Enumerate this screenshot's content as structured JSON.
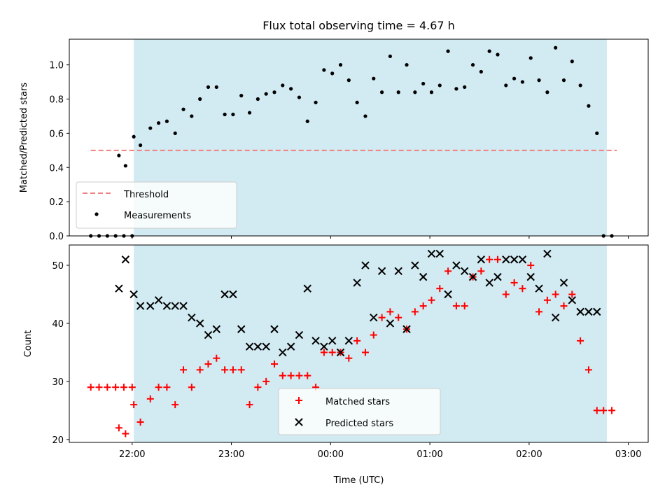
{
  "chart_data": [
    {
      "type": "scatter",
      "title": "Flux total observing time = 4.67 h",
      "ylabel": "Matched/Predicted stars",
      "xlim": [
        "21:22",
        "03:12"
      ],
      "ylim": [
        0,
        1.15
      ],
      "yticks": [
        "0.0",
        "0.2",
        "0.4",
        "0.6",
        "0.8",
        "1.0"
      ],
      "xticks": [
        "22:00",
        "23:00",
        "00:00",
        "01:00",
        "02:00",
        "03:00"
      ],
      "shaded_span": [
        "22:01",
        "02:47"
      ],
      "shade_color": "#add8e6",
      "threshold": {
        "name": "Threshold",
        "value": 0.5,
        "x_start": "21:35",
        "x_end": "02:53",
        "color": "#f08080"
      },
      "measurements": {
        "name": "Measurements",
        "color": "#000000",
        "points": [
          [
            "21:35",
            0.0
          ],
          [
            "21:40",
            0.0
          ],
          [
            "21:45",
            0.0
          ],
          [
            "21:50",
            0.0
          ],
          [
            "21:55",
            0.0
          ],
          [
            "22:00",
            0.0
          ],
          [
            "21:52",
            0.47
          ],
          [
            "21:56",
            0.41
          ],
          [
            "22:01",
            0.58
          ],
          [
            "22:05",
            0.53
          ],
          [
            "22:11",
            0.63
          ],
          [
            "22:16",
            0.66
          ],
          [
            "22:21",
            0.67
          ],
          [
            "22:26",
            0.6
          ],
          [
            "22:31",
            0.74
          ],
          [
            "22:36",
            0.7
          ],
          [
            "22:41",
            0.8
          ],
          [
            "22:46",
            0.87
          ],
          [
            "22:51",
            0.87
          ],
          [
            "22:56",
            0.71
          ],
          [
            "23:01",
            0.71
          ],
          [
            "23:06",
            0.82
          ],
          [
            "23:11",
            0.72
          ],
          [
            "23:16",
            0.8
          ],
          [
            "23:21",
            0.83
          ],
          [
            "23:26",
            0.84
          ],
          [
            "23:31",
            0.88
          ],
          [
            "23:36",
            0.86
          ],
          [
            "23:41",
            0.81
          ],
          [
            "23:46",
            0.67
          ],
          [
            "23:51",
            0.78
          ],
          [
            "23:56",
            0.97
          ],
          [
            "00:01",
            0.95
          ],
          [
            "00:06",
            1.0
          ],
          [
            "00:11",
            0.91
          ],
          [
            "00:16",
            0.78
          ],
          [
            "00:21",
            0.7
          ],
          [
            "00:26",
            0.92
          ],
          [
            "00:31",
            0.84
          ],
          [
            "00:36",
            1.05
          ],
          [
            "00:41",
            0.84
          ],
          [
            "00:46",
            1.0
          ],
          [
            "00:51",
            0.84
          ],
          [
            "00:56",
            0.89
          ],
          [
            "01:01",
            0.84
          ],
          [
            "01:06",
            0.88
          ],
          [
            "01:11",
            1.08
          ],
          [
            "01:16",
            0.86
          ],
          [
            "01:21",
            0.87
          ],
          [
            "01:26",
            1.0
          ],
          [
            "01:31",
            0.96
          ],
          [
            "01:36",
            1.08
          ],
          [
            "01:41",
            1.06
          ],
          [
            "01:46",
            0.88
          ],
          [
            "01:51",
            0.92
          ],
          [
            "01:56",
            0.9
          ],
          [
            "02:01",
            1.04
          ],
          [
            "02:06",
            0.91
          ],
          [
            "02:11",
            0.84
          ],
          [
            "02:16",
            1.1
          ],
          [
            "02:21",
            0.91
          ],
          [
            "02:26",
            1.02
          ],
          [
            "02:31",
            0.88
          ],
          [
            "02:36",
            0.76
          ],
          [
            "02:41",
            0.6
          ],
          [
            "02:45",
            0.0
          ],
          [
            "02:50",
            0.0
          ]
        ]
      },
      "legend": {
        "position": "lower left",
        "entries": [
          "Threshold",
          "Measurements"
        ]
      }
    },
    {
      "type": "scatter",
      "xlabel": "Time (UTC)",
      "ylabel": "Count",
      "xlim": [
        "21:22",
        "03:12"
      ],
      "ylim": [
        19.5,
        53.5
      ],
      "yticks": [
        "20",
        "30",
        "40",
        "50"
      ],
      "xticks": [
        "22:00",
        "23:00",
        "00:00",
        "01:00",
        "02:00",
        "03:00"
      ],
      "shaded_span": [
        "22:01",
        "02:47"
      ],
      "series": [
        {
          "name": "Matched stars",
          "marker": "+",
          "color": "#ff0000",
          "points": [
            [
              "21:35",
              29
            ],
            [
              "21:40",
              29
            ],
            [
              "21:45",
              29
            ],
            [
              "21:50",
              29
            ],
            [
              "21:55",
              29
            ],
            [
              "22:00",
              29
            ],
            [
              "21:52",
              22
            ],
            [
              "21:56",
              21
            ],
            [
              "22:01",
              26
            ],
            [
              "22:05",
              23
            ],
            [
              "22:11",
              27
            ],
            [
              "22:16",
              29
            ],
            [
              "22:21",
              29
            ],
            [
              "22:26",
              26
            ],
            [
              "22:31",
              32
            ],
            [
              "22:36",
              29
            ],
            [
              "22:41",
              32
            ],
            [
              "22:46",
              33
            ],
            [
              "22:51",
              34
            ],
            [
              "22:56",
              32
            ],
            [
              "23:01",
              32
            ],
            [
              "23:06",
              32
            ],
            [
              "23:11",
              26
            ],
            [
              "23:16",
              29
            ],
            [
              "23:21",
              30
            ],
            [
              "23:26",
              33
            ],
            [
              "23:31",
              31
            ],
            [
              "23:36",
              31
            ],
            [
              "23:41",
              31
            ],
            [
              "23:46",
              31
            ],
            [
              "23:51",
              29
            ],
            [
              "23:56",
              35
            ],
            [
              "00:01",
              35
            ],
            [
              "00:06",
              35
            ],
            [
              "00:11",
              34
            ],
            [
              "00:16",
              37
            ],
            [
              "00:21",
              35
            ],
            [
              "00:26",
              38
            ],
            [
              "00:31",
              41
            ],
            [
              "00:36",
              42
            ],
            [
              "00:41",
              41
            ],
            [
              "00:46",
              39
            ],
            [
              "00:51",
              42
            ],
            [
              "00:56",
              43
            ],
            [
              "01:01",
              44
            ],
            [
              "01:06",
              46
            ],
            [
              "01:11",
              49
            ],
            [
              "01:16",
              43
            ],
            [
              "01:21",
              43
            ],
            [
              "01:26",
              48
            ],
            [
              "01:31",
              49
            ],
            [
              "01:36",
              51
            ],
            [
              "01:41",
              51
            ],
            [
              "01:46",
              45
            ],
            [
              "01:51",
              47
            ],
            [
              "01:56",
              46
            ],
            [
              "02:01",
              50
            ],
            [
              "02:06",
              42
            ],
            [
              "02:11",
              44
            ],
            [
              "02:16",
              45
            ],
            [
              "02:21",
              43
            ],
            [
              "02:26",
              45
            ],
            [
              "02:31",
              37
            ],
            [
              "02:36",
              32
            ],
            [
              "02:41",
              25
            ],
            [
              "02:45",
              25
            ],
            [
              "02:50",
              25
            ]
          ]
        },
        {
          "name": "Predicted stars",
          "marker": "x",
          "color": "#000000",
          "points": [
            [
              "21:52",
              46
            ],
            [
              "21:56",
              51
            ],
            [
              "22:01",
              45
            ],
            [
              "22:05",
              43
            ],
            [
              "22:11",
              43
            ],
            [
              "22:16",
              44
            ],
            [
              "22:21",
              43
            ],
            [
              "22:26",
              43
            ],
            [
              "22:31",
              43
            ],
            [
              "22:36",
              41
            ],
            [
              "22:41",
              40
            ],
            [
              "22:46",
              38
            ],
            [
              "22:51",
              39
            ],
            [
              "22:56",
              45
            ],
            [
              "23:01",
              45
            ],
            [
              "23:06",
              39
            ],
            [
              "23:11",
              36
            ],
            [
              "23:16",
              36
            ],
            [
              "23:21",
              36
            ],
            [
              "23:26",
              39
            ],
            [
              "23:31",
              35
            ],
            [
              "23:36",
              36
            ],
            [
              "23:41",
              38
            ],
            [
              "23:46",
              46
            ],
            [
              "23:51",
              37
            ],
            [
              "23:56",
              36
            ],
            [
              "00:01",
              37
            ],
            [
              "00:06",
              35
            ],
            [
              "00:11",
              37
            ],
            [
              "00:16",
              47
            ],
            [
              "00:21",
              50
            ],
            [
              "00:26",
              41
            ],
            [
              "00:31",
              49
            ],
            [
              "00:36",
              40
            ],
            [
              "00:41",
              49
            ],
            [
              "00:46",
              39
            ],
            [
              "00:51",
              50
            ],
            [
              "00:56",
              48
            ],
            [
              "01:01",
              52
            ],
            [
              "01:06",
              52
            ],
            [
              "01:11",
              45
            ],
            [
              "01:16",
              50
            ],
            [
              "01:21",
              49
            ],
            [
              "01:26",
              48
            ],
            [
              "01:31",
              51
            ],
            [
              "01:36",
              47
            ],
            [
              "01:41",
              48
            ],
            [
              "01:46",
              51
            ],
            [
              "01:51",
              51
            ],
            [
              "01:56",
              51
            ],
            [
              "02:01",
              48
            ],
            [
              "02:06",
              46
            ],
            [
              "02:11",
              52
            ],
            [
              "02:16",
              41
            ],
            [
              "02:21",
              47
            ],
            [
              "02:26",
              44
            ],
            [
              "02:31",
              42
            ],
            [
              "02:36",
              42
            ],
            [
              "02:41",
              42
            ]
          ]
        }
      ],
      "legend": {
        "position": "lower center",
        "entries": [
          "Matched stars",
          "Predicted stars"
        ]
      }
    }
  ]
}
